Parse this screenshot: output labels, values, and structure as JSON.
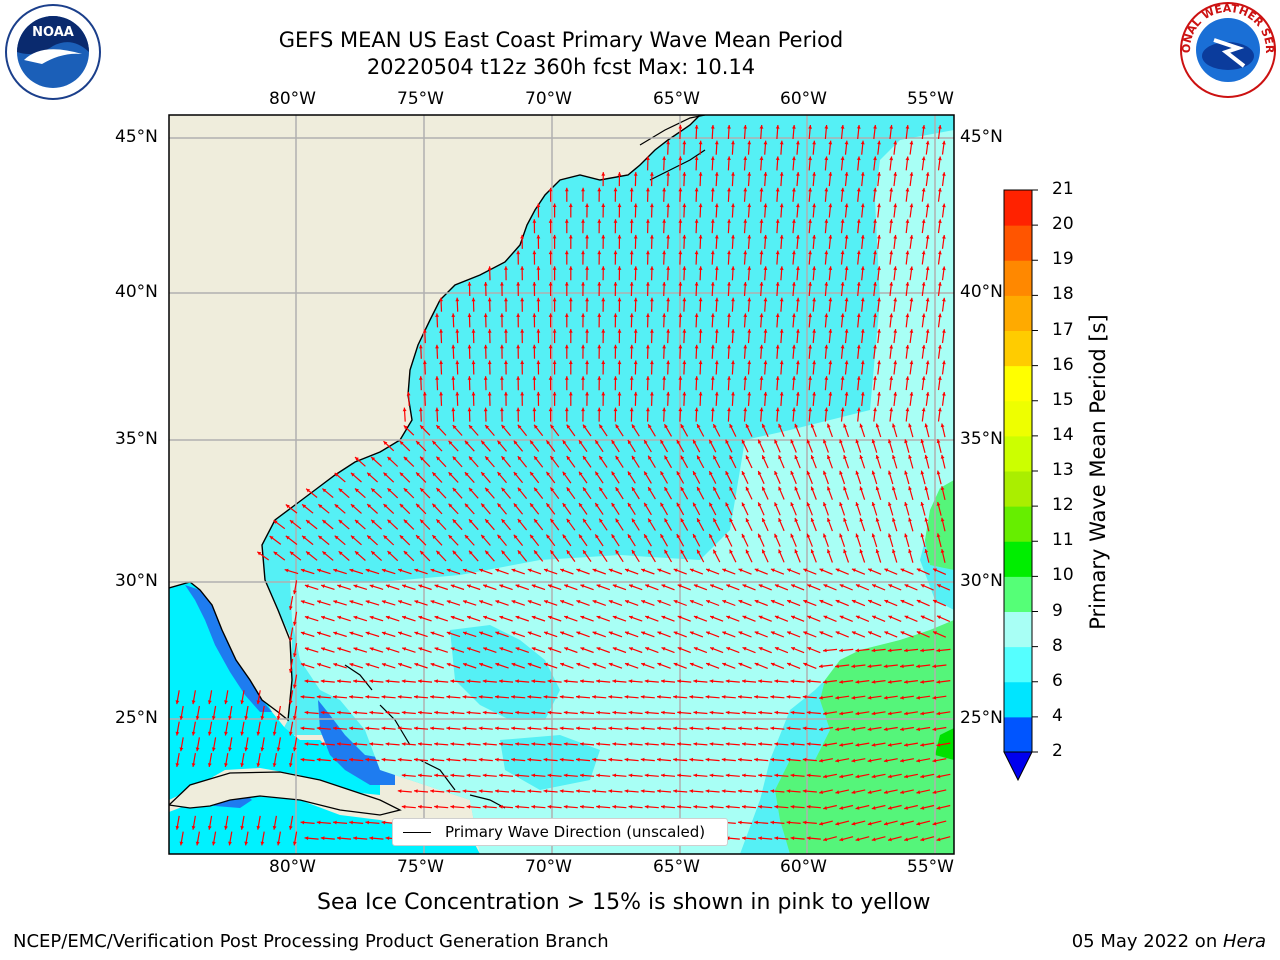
{
  "title_line1": "GEFS MEAN US East Coast Primary Wave Mean Period",
  "title_line2": "20220504 t12z 360h fcst   Max: 10.14",
  "lon_labels": [
    "80°W",
    "75°W",
    "70°W",
    "65°W",
    "60°W",
    "55°W"
  ],
  "lat_labels": [
    "45°N",
    "40°N",
    "35°N",
    "30°N",
    "25°N"
  ],
  "legend_label": "Primary Wave Direction (unscaled)",
  "ice_note": "Sea Ice Concentration > 15% is shown in pink to yellow",
  "footer_left": "NCEP/EMC/Verification Post Processing Product Generation Branch",
  "footer_date": "05 May 2022 on ",
  "footer_host": "Hera",
  "colorbar": {
    "label": "Primary Wave Mean Period [s]",
    "ticks": [
      "2",
      "4",
      "6",
      "8",
      "9",
      "10",
      "11",
      "12",
      "13",
      "14",
      "15",
      "16",
      "17",
      "18",
      "19",
      "20",
      "21"
    ],
    "colors": [
      "#0055ff",
      "#00e5ff",
      "#55ffff",
      "#a8fff5",
      "#55ff77",
      "#00ee00",
      "#66ee00",
      "#aaee00",
      "#ccff00",
      "#eeff00",
      "#ffff00",
      "#ffcc00",
      "#ffaa00",
      "#ff8800",
      "#ff5500",
      "#ff2200"
    ],
    "under_color": "#0000ee"
  },
  "arrow_color": "#ff0000",
  "land_color": "#efeddc",
  "ocean_color": "#55f0f5",
  "logos": {
    "left": "NOAA",
    "right": "NATIONAL WEATHER SERVICE"
  }
}
